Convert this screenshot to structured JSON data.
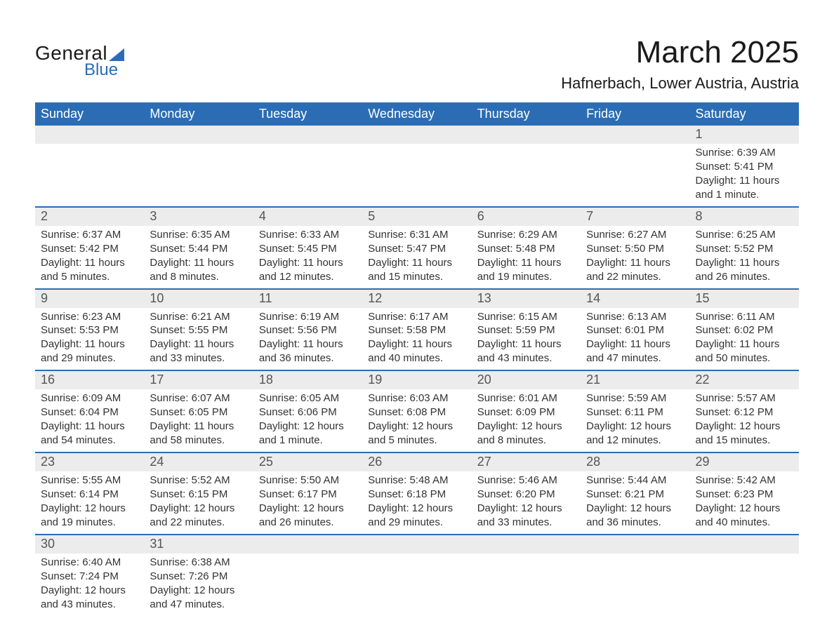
{
  "logo": {
    "text_general": "General",
    "text_blue": "Blue"
  },
  "title": "March 2025",
  "location": "Hafnerbach, Lower Austria, Austria",
  "colors": {
    "header_bg": "#2a6db5",
    "daynum_bg": "#ececec",
    "week_divider": "#2a6db5",
    "text": "#333333",
    "background": "#ffffff"
  },
  "day_names": [
    "Sunday",
    "Monday",
    "Tuesday",
    "Wednesday",
    "Thursday",
    "Friday",
    "Saturday"
  ],
  "weeks": [
    [
      {
        "day": "",
        "sunrise": "",
        "sunset": "",
        "daylight": ""
      },
      {
        "day": "",
        "sunrise": "",
        "sunset": "",
        "daylight": ""
      },
      {
        "day": "",
        "sunrise": "",
        "sunset": "",
        "daylight": ""
      },
      {
        "day": "",
        "sunrise": "",
        "sunset": "",
        "daylight": ""
      },
      {
        "day": "",
        "sunrise": "",
        "sunset": "",
        "daylight": ""
      },
      {
        "day": "",
        "sunrise": "",
        "sunset": "",
        "daylight": ""
      },
      {
        "day": "1",
        "sunrise": "Sunrise: 6:39 AM",
        "sunset": "Sunset: 5:41 PM",
        "daylight": "Daylight: 11 hours and 1 minute."
      }
    ],
    [
      {
        "day": "2",
        "sunrise": "Sunrise: 6:37 AM",
        "sunset": "Sunset: 5:42 PM",
        "daylight": "Daylight: 11 hours and 5 minutes."
      },
      {
        "day": "3",
        "sunrise": "Sunrise: 6:35 AM",
        "sunset": "Sunset: 5:44 PM",
        "daylight": "Daylight: 11 hours and 8 minutes."
      },
      {
        "day": "4",
        "sunrise": "Sunrise: 6:33 AM",
        "sunset": "Sunset: 5:45 PM",
        "daylight": "Daylight: 11 hours and 12 minutes."
      },
      {
        "day": "5",
        "sunrise": "Sunrise: 6:31 AM",
        "sunset": "Sunset: 5:47 PM",
        "daylight": "Daylight: 11 hours and 15 minutes."
      },
      {
        "day": "6",
        "sunrise": "Sunrise: 6:29 AM",
        "sunset": "Sunset: 5:48 PM",
        "daylight": "Daylight: 11 hours and 19 minutes."
      },
      {
        "day": "7",
        "sunrise": "Sunrise: 6:27 AM",
        "sunset": "Sunset: 5:50 PM",
        "daylight": "Daylight: 11 hours and 22 minutes."
      },
      {
        "day": "8",
        "sunrise": "Sunrise: 6:25 AM",
        "sunset": "Sunset: 5:52 PM",
        "daylight": "Daylight: 11 hours and 26 minutes."
      }
    ],
    [
      {
        "day": "9",
        "sunrise": "Sunrise: 6:23 AM",
        "sunset": "Sunset: 5:53 PM",
        "daylight": "Daylight: 11 hours and 29 minutes."
      },
      {
        "day": "10",
        "sunrise": "Sunrise: 6:21 AM",
        "sunset": "Sunset: 5:55 PM",
        "daylight": "Daylight: 11 hours and 33 minutes."
      },
      {
        "day": "11",
        "sunrise": "Sunrise: 6:19 AM",
        "sunset": "Sunset: 5:56 PM",
        "daylight": "Daylight: 11 hours and 36 minutes."
      },
      {
        "day": "12",
        "sunrise": "Sunrise: 6:17 AM",
        "sunset": "Sunset: 5:58 PM",
        "daylight": "Daylight: 11 hours and 40 minutes."
      },
      {
        "day": "13",
        "sunrise": "Sunrise: 6:15 AM",
        "sunset": "Sunset: 5:59 PM",
        "daylight": "Daylight: 11 hours and 43 minutes."
      },
      {
        "day": "14",
        "sunrise": "Sunrise: 6:13 AM",
        "sunset": "Sunset: 6:01 PM",
        "daylight": "Daylight: 11 hours and 47 minutes."
      },
      {
        "day": "15",
        "sunrise": "Sunrise: 6:11 AM",
        "sunset": "Sunset: 6:02 PM",
        "daylight": "Daylight: 11 hours and 50 minutes."
      }
    ],
    [
      {
        "day": "16",
        "sunrise": "Sunrise: 6:09 AM",
        "sunset": "Sunset: 6:04 PM",
        "daylight": "Daylight: 11 hours and 54 minutes."
      },
      {
        "day": "17",
        "sunrise": "Sunrise: 6:07 AM",
        "sunset": "Sunset: 6:05 PM",
        "daylight": "Daylight: 11 hours and 58 minutes."
      },
      {
        "day": "18",
        "sunrise": "Sunrise: 6:05 AM",
        "sunset": "Sunset: 6:06 PM",
        "daylight": "Daylight: 12 hours and 1 minute."
      },
      {
        "day": "19",
        "sunrise": "Sunrise: 6:03 AM",
        "sunset": "Sunset: 6:08 PM",
        "daylight": "Daylight: 12 hours and 5 minutes."
      },
      {
        "day": "20",
        "sunrise": "Sunrise: 6:01 AM",
        "sunset": "Sunset: 6:09 PM",
        "daylight": "Daylight: 12 hours and 8 minutes."
      },
      {
        "day": "21",
        "sunrise": "Sunrise: 5:59 AM",
        "sunset": "Sunset: 6:11 PM",
        "daylight": "Daylight: 12 hours and 12 minutes."
      },
      {
        "day": "22",
        "sunrise": "Sunrise: 5:57 AM",
        "sunset": "Sunset: 6:12 PM",
        "daylight": "Daylight: 12 hours and 15 minutes."
      }
    ],
    [
      {
        "day": "23",
        "sunrise": "Sunrise: 5:55 AM",
        "sunset": "Sunset: 6:14 PM",
        "daylight": "Daylight: 12 hours and 19 minutes."
      },
      {
        "day": "24",
        "sunrise": "Sunrise: 5:52 AM",
        "sunset": "Sunset: 6:15 PM",
        "daylight": "Daylight: 12 hours and 22 minutes."
      },
      {
        "day": "25",
        "sunrise": "Sunrise: 5:50 AM",
        "sunset": "Sunset: 6:17 PM",
        "daylight": "Daylight: 12 hours and 26 minutes."
      },
      {
        "day": "26",
        "sunrise": "Sunrise: 5:48 AM",
        "sunset": "Sunset: 6:18 PM",
        "daylight": "Daylight: 12 hours and 29 minutes."
      },
      {
        "day": "27",
        "sunrise": "Sunrise: 5:46 AM",
        "sunset": "Sunset: 6:20 PM",
        "daylight": "Daylight: 12 hours and 33 minutes."
      },
      {
        "day": "28",
        "sunrise": "Sunrise: 5:44 AM",
        "sunset": "Sunset: 6:21 PM",
        "daylight": "Daylight: 12 hours and 36 minutes."
      },
      {
        "day": "29",
        "sunrise": "Sunrise: 5:42 AM",
        "sunset": "Sunset: 6:23 PM",
        "daylight": "Daylight: 12 hours and 40 minutes."
      }
    ],
    [
      {
        "day": "30",
        "sunrise": "Sunrise: 6:40 AM",
        "sunset": "Sunset: 7:24 PM",
        "daylight": "Daylight: 12 hours and 43 minutes."
      },
      {
        "day": "31",
        "sunrise": "Sunrise: 6:38 AM",
        "sunset": "Sunset: 7:26 PM",
        "daylight": "Daylight: 12 hours and 47 minutes."
      },
      {
        "day": "",
        "sunrise": "",
        "sunset": "",
        "daylight": ""
      },
      {
        "day": "",
        "sunrise": "",
        "sunset": "",
        "daylight": ""
      },
      {
        "day": "",
        "sunrise": "",
        "sunset": "",
        "daylight": ""
      },
      {
        "day": "",
        "sunrise": "",
        "sunset": "",
        "daylight": ""
      },
      {
        "day": "",
        "sunrise": "",
        "sunset": "",
        "daylight": ""
      }
    ]
  ]
}
